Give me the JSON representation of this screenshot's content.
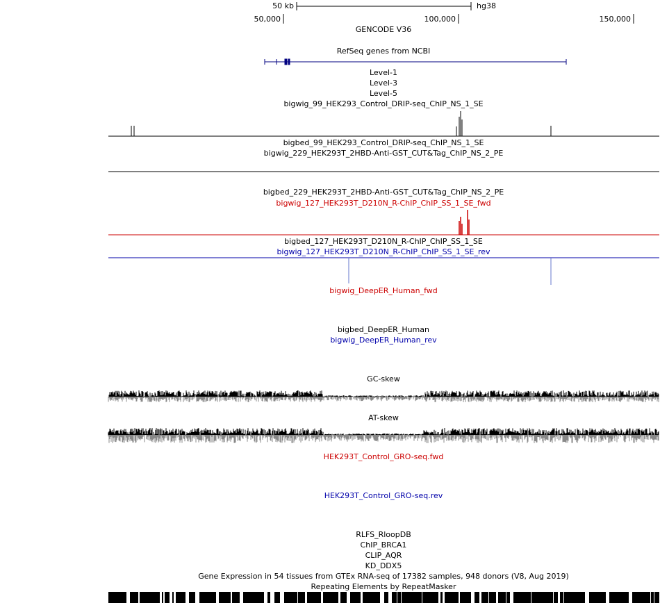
{
  "scale": {
    "label": "50 kb",
    "assembly": "hg38"
  },
  "ruler": [
    "50,000",
    "100,000",
    "150,000"
  ],
  "tracks": [
    {
      "label": "GENCODE V36",
      "color": "#000000"
    },
    {
      "label": "RefSeq genes from NCBI",
      "color": "#000000"
    },
    {
      "label": "Level-1",
      "color": "#000000"
    },
    {
      "label": "Level-3",
      "color": "#000000"
    },
    {
      "label": "Level-5",
      "color": "#000000"
    },
    {
      "label": "bigwig_99_HEK293_Control_DRIP-seq_ChIP_NS_1_SE",
      "color": "#000000"
    },
    {
      "label": "bigbed_99_HEK293_Control_DRIP-seq_ChIP_NS_1_SE",
      "color": "#000000"
    },
    {
      "label": "bigwig_229_HEK293T_2HBD-Anti-GST_CUT&Tag_ChIP_NS_2_PE",
      "color": "#000000"
    },
    {
      "label": "bigbed_229_HEK293T_2HBD-Anti-GST_CUT&Tag_ChIP_NS_2_PE",
      "color": "#000000"
    },
    {
      "label": "bigwig_127_HEK293T_D210N_R-ChIP_ChIP_SS_1_SE_fwd",
      "color": "#cc0000"
    },
    {
      "label": "bigbed_127_HEK293T_D210N_R-ChIP_ChIP_SS_1_SE",
      "color": "#000000"
    },
    {
      "label": "bigwig_127_HEK293T_D210N_R-ChIP_ChIP_SS_1_SE_rev",
      "color": "#0000aa"
    },
    {
      "label": "bigwig_DeepER_Human_fwd",
      "color": "#cc0000"
    },
    {
      "label": "bigbed_DeepER_Human",
      "color": "#000000"
    },
    {
      "label": "bigwig_DeepER_Human_rev",
      "color": "#0000aa"
    },
    {
      "label": "GC-skew",
      "color": "#000000"
    },
    {
      "label": "AT-skew",
      "color": "#000000"
    },
    {
      "label": "HEK293T_Control_GRO-seq.fwd",
      "color": "#cc0000"
    },
    {
      "label": "HEK293T_Control_GRO-seq.rev",
      "color": "#0000aa"
    },
    {
      "label": "RLFS_RloopDB",
      "color": "#000000"
    },
    {
      "label": "ChIP_BRCA1",
      "color": "#000000"
    },
    {
      "label": "CLIP_AQR",
      "color": "#000000"
    },
    {
      "label": "KD_DDX5",
      "color": "#000000"
    },
    {
      "label": "Gene Expression in 54 tissues from GTEx RNA-seq of 17382 samples, 948 donors (V8, Aug 2019)",
      "color": "#000000"
    },
    {
      "label": "Repeating Elements by RepeatMasker",
      "color": "#000000"
    }
  ]
}
